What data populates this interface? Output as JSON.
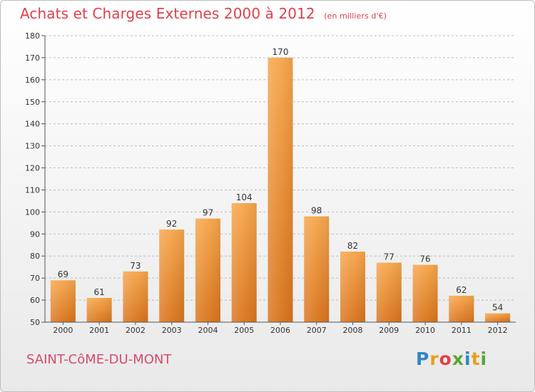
{
  "header": {
    "title": "Achats et Charges Externes 2000 à 2012",
    "subtitle": "(en milliers d'€)"
  },
  "footer": {
    "commune": "SAINT-CôME-DU-MONT",
    "logo": [
      "P",
      "r",
      "o",
      "x",
      "i",
      "t",
      "i"
    ],
    "logo_colors": [
      "#2e86c8",
      "#e2a21b",
      "#e0404a",
      "#5aa636",
      "#2e86c8",
      "#e2a21b",
      "#5aa636"
    ]
  },
  "colors": {
    "bar_top": "#f6a54a",
    "bar_bottom": "#d8731b",
    "title": "#e0404a",
    "grid": "#bdbdbd"
  },
  "chart_data": {
    "type": "bar",
    "title": "Achats et Charges Externes 2000 à 2012",
    "subtitle": "(en milliers d'€)",
    "categories": [
      "2000",
      "2001",
      "2002",
      "2003",
      "2004",
      "2005",
      "2006",
      "2007",
      "2008",
      "2009",
      "2010",
      "2011",
      "2012"
    ],
    "values": [
      69,
      61,
      73,
      92,
      97,
      104,
      170,
      98,
      82,
      77,
      76,
      62,
      54
    ],
    "ylim": [
      50,
      180
    ],
    "yticks": [
      50,
      60,
      70,
      80,
      90,
      100,
      110,
      120,
      130,
      140,
      150,
      160,
      170,
      180
    ],
    "grid": true,
    "data_labels": true
  }
}
